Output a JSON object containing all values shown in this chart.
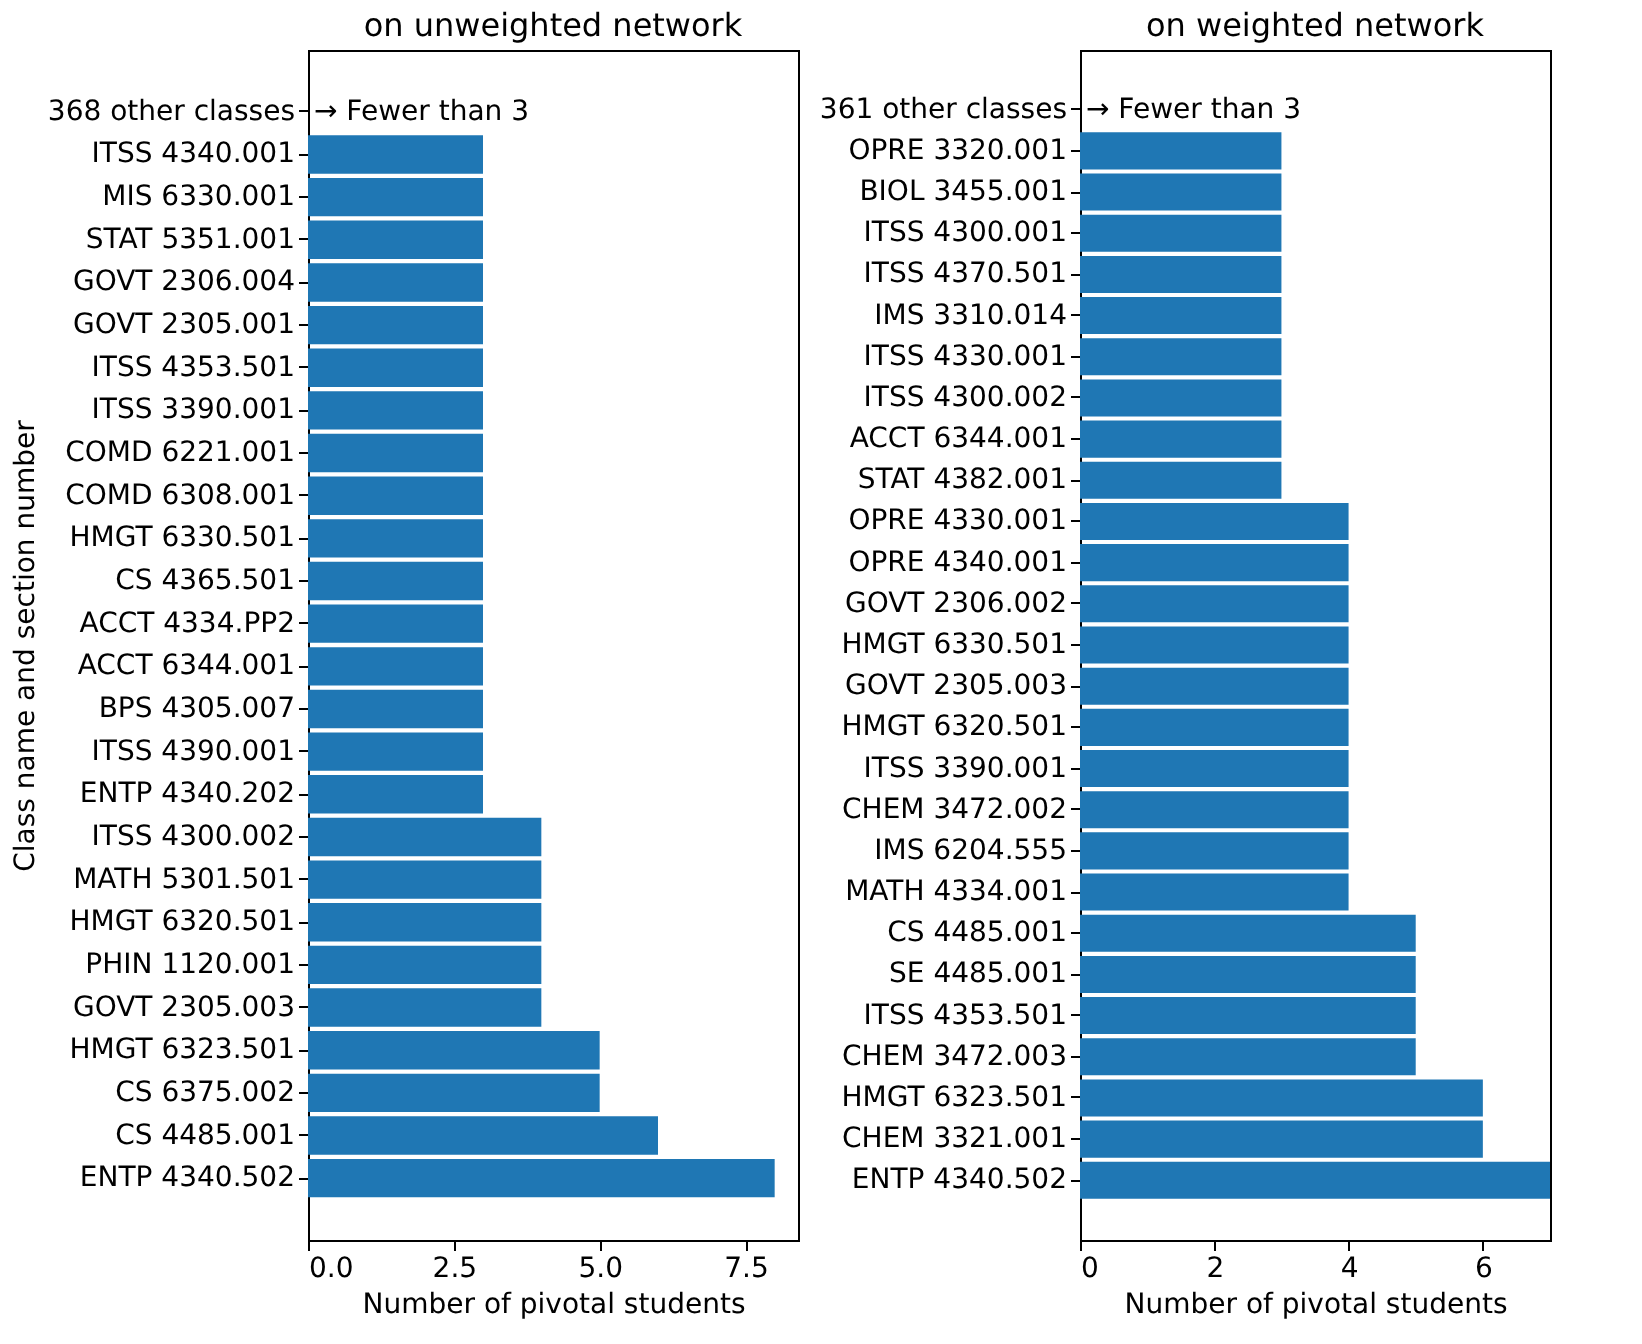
{
  "chart_data": [
    {
      "type": "bar",
      "orientation": "horizontal",
      "title": "on unweighted network",
      "xlabel": "Number of pivotal students",
      "ylabel": "Class name and section number",
      "color": "#1f77b4",
      "grid": false,
      "categories": [
        "368 other classes",
        "ITSS 4340.001",
        "MIS 6330.001",
        "STAT 5351.001",
        "GOVT 2306.004",
        "GOVT 2305.001",
        "ITSS 4353.501",
        "ITSS 3390.001",
        "COMD 6221.001",
        "COMD 6308.001",
        "HMGT 6330.501",
        "CS 4365.501",
        "ACCT 4334.PP2",
        "ACCT 6344.001",
        "BPS 4305.007",
        "ITSS 4390.001",
        "ENTP 4340.202",
        "ITSS 4300.002",
        "MATH 5301.501",
        "HMGT 6320.501",
        "PHIN 1120.001",
        "GOVT 2305.003",
        "HMGT 6323.501",
        "CS 6375.002",
        "CS 4485.001",
        "ENTP 4340.502"
      ],
      "values": [
        null,
        3,
        3,
        3,
        3,
        3,
        3,
        3,
        3,
        3,
        3,
        3,
        3,
        3,
        3,
        3,
        3,
        4,
        4,
        4,
        4,
        4,
        5,
        5,
        6,
        8
      ],
      "xlim": [
        0,
        8.4
      ],
      "xticks": [
        {
          "value": 0,
          "label": "0.0"
        },
        {
          "value": 2.5,
          "label": "2.5"
        },
        {
          "value": 5,
          "label": "5.0"
        },
        {
          "value": 7.5,
          "label": "7.5"
        }
      ],
      "annotations": [
        {
          "text": "→ Fewer than 3",
          "x": 0,
          "y": "368 other classes"
        }
      ]
    },
    {
      "type": "bar",
      "orientation": "horizontal",
      "title": "on weighted network",
      "xlabel": "Number of pivotal students",
      "color": "#1f77b4",
      "grid": false,
      "categories": [
        "361 other classes",
        "OPRE 3320.001",
        "BIOL 3455.001",
        "ITSS 4300.001",
        "ITSS 4370.501",
        "IMS 3310.014",
        "ITSS 4330.001",
        "ITSS 4300.002",
        "ACCT 6344.001",
        "STAT 4382.001",
        "OPRE 4330.001",
        "OPRE 4340.001",
        "GOVT 2306.002",
        "HMGT 6330.501",
        "GOVT 2305.003",
        "HMGT 6320.501",
        "ITSS 3390.001",
        "CHEM 3472.002",
        "IMS 6204.555",
        "MATH 4334.001",
        "CS 4485.001",
        "SE 4485.001",
        "ITSS 4353.501",
        "CHEM 3472.003",
        "HMGT 6323.501",
        "CHEM 3321.001",
        "ENTP 4340.502"
      ],
      "values": [
        null,
        3,
        3,
        3,
        3,
        3,
        3,
        3,
        3,
        3,
        4,
        4,
        4,
        4,
        4,
        4,
        4,
        4,
        4,
        4,
        5,
        5,
        5,
        5,
        6,
        6,
        7
      ],
      "xlim": [
        0,
        7
      ],
      "xticks": [
        0,
        2,
        4,
        6
      ],
      "annotations": [
        {
          "text": "→ Fewer than 3",
          "x": 0,
          "y": "361 other classes"
        }
      ]
    }
  ]
}
